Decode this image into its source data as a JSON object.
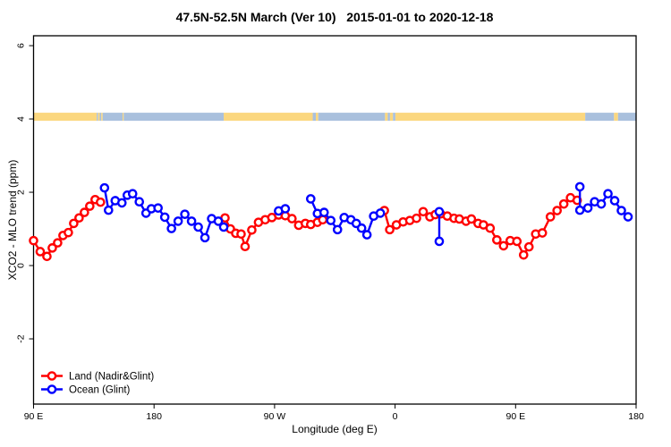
{
  "title": "47.5N-52.5N March (Ver 10)   2015-01-01 to 2020-12-18",
  "chart_data": {
    "type": "line",
    "title": "47.5N-52.5N March (Ver 10)   2015-01-01 to 2020-12-18",
    "xlabel": "Longitude (deg E)",
    "ylabel": "XCO2 - MLO trend (ppm)",
    "xlim": [
      90,
      540
    ],
    "ylim": [
      -3.78,
      6.27
    ],
    "grid": false,
    "x_ticks": [
      {
        "lon": 90,
        "label": "90 E"
      },
      {
        "lon": 180,
        "label": "180"
      },
      {
        "lon": 270,
        "label": "90 W"
      },
      {
        "lon": 360,
        "label": "0"
      },
      {
        "lon": 450,
        "label": "90 E"
      },
      {
        "lon": 540,
        "label": "180"
      }
    ],
    "y_ticks": [
      {
        "value": -2,
        "label": "-2"
      },
      {
        "value": 0,
        "label": "0"
      },
      {
        "value": 2,
        "label": "2"
      },
      {
        "value": 4,
        "label": "4"
      },
      {
        "value": 6,
        "label": "6"
      }
    ],
    "legend": {
      "position": "bottom-left",
      "items": [
        {
          "name": "Land (Nadir&Glint)",
          "color": "#ff0000"
        },
        {
          "name": "Ocean (Glint)",
          "color": "#0000ff"
        }
      ]
    },
    "land_ocean_band": {
      "description": "land/ocean mask strip drawn near y=4",
      "value_range": [
        3.95,
        4.17
      ],
      "land_color": "#fbd77f",
      "ocean_color": "#a9c0dd",
      "segments": [
        {
          "type": "land",
          "from": 90,
          "to": 137.2
        },
        {
          "type": "ocean",
          "from": 137.2,
          "to": 138.2
        },
        {
          "type": "land",
          "from": 138.2,
          "to": 139.4
        },
        {
          "type": "ocean",
          "from": 139.4,
          "to": 140.6
        },
        {
          "type": "land",
          "from": 140.6,
          "to": 141.6
        },
        {
          "type": "ocean",
          "from": 141.6,
          "to": 156.5
        },
        {
          "type": "land",
          "from": 156.5,
          "to": 157.3
        },
        {
          "type": "ocean",
          "from": 157.3,
          "to": 232
        },
        {
          "type": "land",
          "from": 232,
          "to": 298.5
        },
        {
          "type": "ocean",
          "from": 298.5,
          "to": 300.8
        },
        {
          "type": "land",
          "from": 300.8,
          "to": 302.6
        },
        {
          "type": "ocean",
          "from": 302.6,
          "to": 352.5
        },
        {
          "type": "land",
          "from": 352.5,
          "to": 354.5
        },
        {
          "type": "ocean",
          "from": 354.5,
          "to": 356.2
        },
        {
          "type": "land",
          "from": 356.2,
          "to": 358.4
        },
        {
          "type": "ocean",
          "from": 358.4,
          "to": 360.2
        },
        {
          "type": "land",
          "from": 360.2,
          "to": 502
        },
        {
          "type": "ocean",
          "from": 502,
          "to": 523.5
        },
        {
          "type": "land",
          "from": 523.5,
          "to": 526.5
        },
        {
          "type": "ocean",
          "from": 526.5,
          "to": 540
        }
      ]
    },
    "series": [
      {
        "name": "Land (Nadir&Glint)",
        "color": "#ff0000",
        "marker": "open-circle",
        "segments": [
          [
            [
              90,
              0.68
            ],
            [
              95,
              0.38
            ],
            [
              100,
              0.25
            ],
            [
              104,
              0.48
            ],
            [
              108,
              0.62
            ],
            [
              112,
              0.82
            ],
            [
              116,
              0.9
            ],
            [
              120,
              1.15
            ],
            [
              124,
              1.3
            ],
            [
              128,
              1.45
            ],
            [
              132,
              1.62
            ],
            [
              136,
              1.8
            ],
            [
              140,
              1.73
            ]
          ],
          [
            [
              233,
              1.3
            ],
            [
              237,
              1.0
            ],
            [
              241,
              0.88
            ],
            [
              245,
              0.86
            ],
            [
              248,
              0.52
            ],
            [
              253,
              0.97
            ],
            [
              258,
              1.18
            ],
            [
              263,
              1.25
            ],
            [
              268,
              1.31
            ],
            [
              273,
              1.38
            ],
            [
              278,
              1.36
            ],
            [
              283,
              1.28
            ],
            [
              288,
              1.1
            ],
            [
              293,
              1.15
            ],
            [
              297,
              1.12
            ],
            [
              302,
              1.18
            ],
            [
              306,
              1.25
            ]
          ],
          [
            [
              352,
              1.5
            ],
            [
              356,
              0.98
            ],
            [
              361,
              1.11
            ],
            [
              366,
              1.19
            ],
            [
              371,
              1.23
            ],
            [
              376,
              1.29
            ],
            [
              381,
              1.47
            ],
            [
              386,
              1.33
            ],
            [
              390,
              1.39
            ],
            [
              394,
              1.41
            ],
            [
              399,
              1.35
            ],
            [
              404,
              1.29
            ],
            [
              408,
              1.27
            ],
            [
              413,
              1.21
            ],
            [
              417,
              1.27
            ],
            [
              422,
              1.15
            ],
            [
              426,
              1.11
            ],
            [
              431,
              1.02
            ],
            [
              436,
              0.7
            ],
            [
              441,
              0.54
            ],
            [
              446,
              0.68
            ],
            [
              451,
              0.66
            ],
            [
              456,
              0.29
            ],
            [
              460,
              0.51
            ],
            [
              465,
              0.86
            ],
            [
              470,
              0.89
            ],
            [
              476,
              1.33
            ],
            [
              481,
              1.5
            ],
            [
              486,
              1.68
            ],
            [
              491,
              1.85
            ],
            [
              496,
              1.78
            ]
          ]
        ]
      },
      {
        "name": "Ocean (Glint)",
        "color": "#0000ff",
        "marker": "open-circle",
        "segments": [
          [
            [
              143,
              2.12
            ],
            [
              146,
              1.51
            ],
            [
              151,
              1.77
            ],
            [
              156,
              1.71
            ],
            [
              160,
              1.92
            ],
            [
              164,
              1.96
            ],
            [
              169,
              1.74
            ],
            [
              174,
              1.43
            ],
            [
              178,
              1.55
            ],
            [
              183,
              1.57
            ],
            [
              188,
              1.32
            ],
            [
              193,
              1.01
            ],
            [
              198,
              1.21
            ],
            [
              203,
              1.4
            ],
            [
              208,
              1.21
            ],
            [
              213,
              1.05
            ],
            [
              218,
              0.76
            ],
            [
              223,
              1.28
            ],
            [
              228,
              1.21
            ],
            [
              232,
              1.05
            ]
          ],
          [
            [
              273,
              1.49
            ],
            [
              278,
              1.55
            ]
          ],
          [
            [
              297,
              1.82
            ],
            [
              302,
              1.42
            ],
            [
              307,
              1.45
            ],
            [
              312,
              1.23
            ],
            [
              317,
              0.98
            ],
            [
              322,
              1.31
            ],
            [
              327,
              1.25
            ],
            [
              331,
              1.15
            ],
            [
              335,
              1.02
            ],
            [
              339,
              0.84
            ],
            [
              344,
              1.35
            ],
            [
              349,
              1.43
            ]
          ],
          [
            [
              393,
              1.47
            ],
            [
              393,
              0.66
            ]
          ],
          [
            [
              498,
              2.15
            ],
            [
              498,
              1.51
            ],
            [
              504,
              1.57
            ],
            [
              509,
              1.74
            ],
            [
              514,
              1.68
            ],
            [
              519,
              1.96
            ],
            [
              524,
              1.77
            ],
            [
              529,
              1.5
            ],
            [
              534,
              1.33
            ]
          ]
        ]
      }
    ]
  }
}
